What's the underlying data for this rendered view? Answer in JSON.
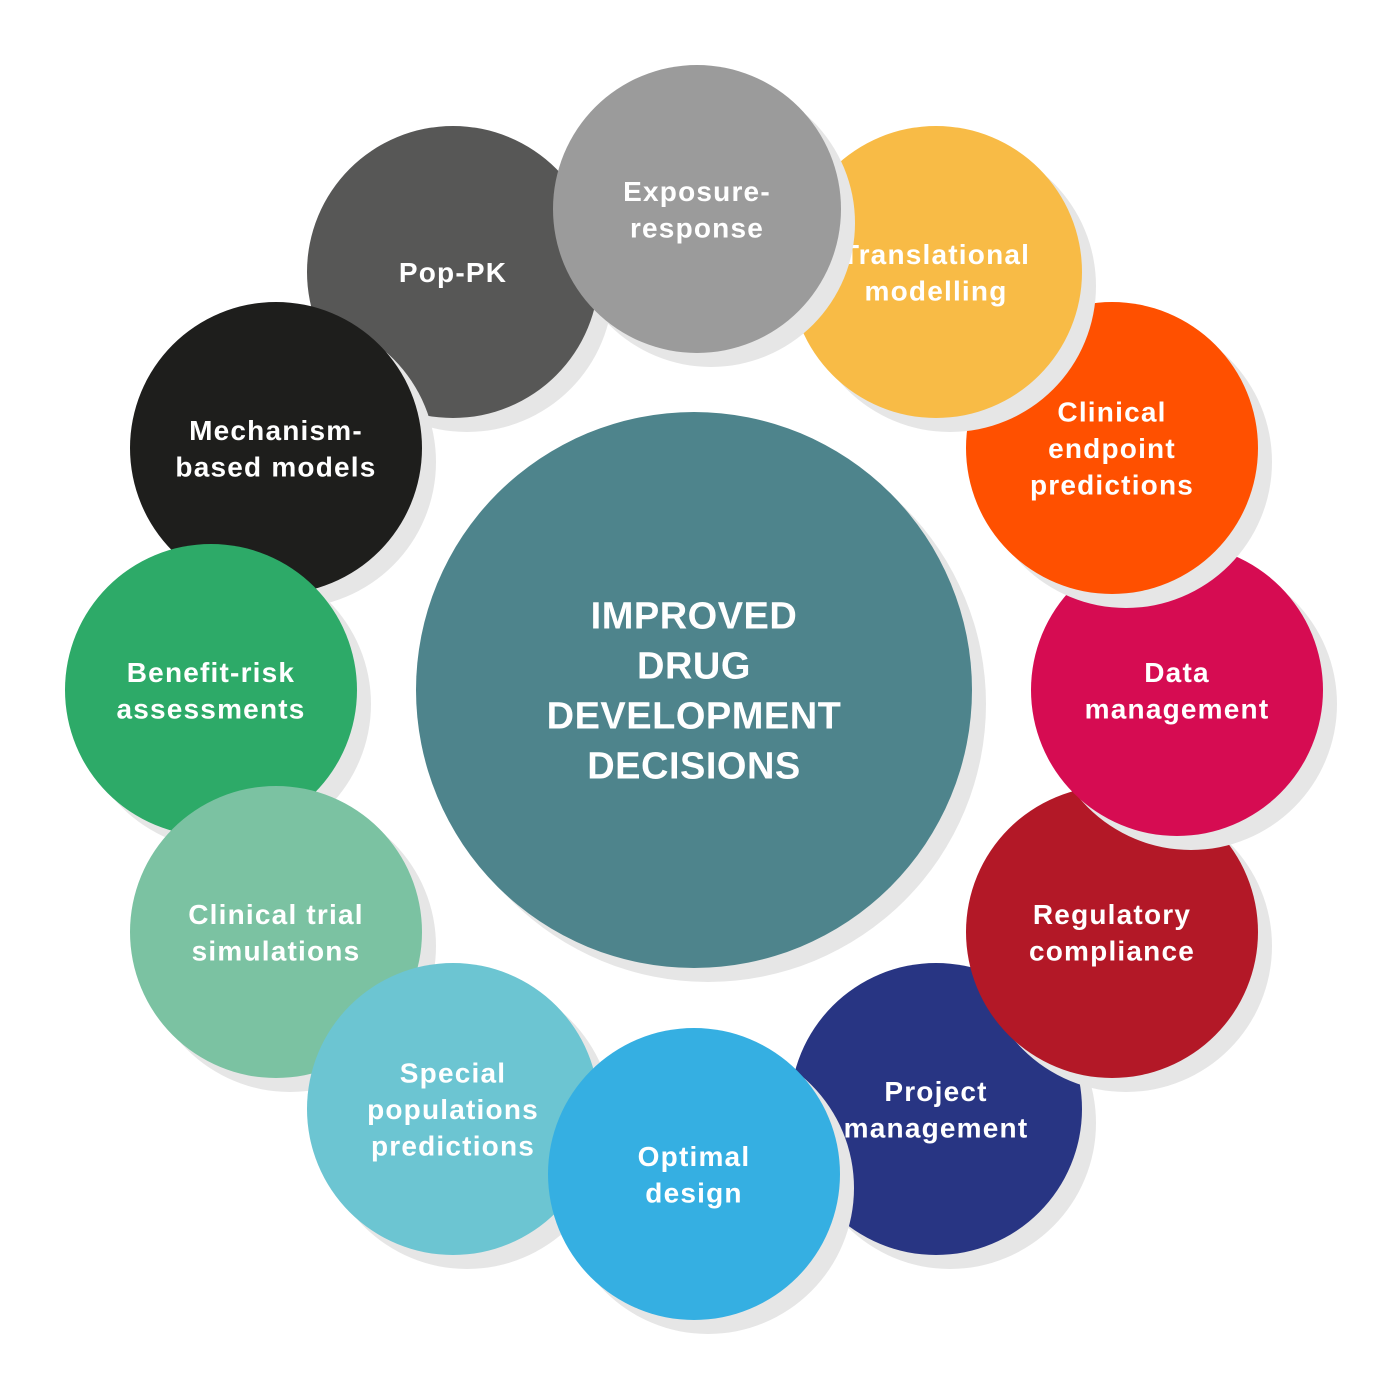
{
  "center": {
    "lines": [
      "IMPROVED",
      "DRUG",
      "DEVELOPMENT",
      "DECISIONS"
    ],
    "color": "#4e848c"
  },
  "shadow_color": "#e6e6e6",
  "nodes": [
    {
      "id": "pop-pk",
      "lines": [
        "Pop-PK"
      ],
      "color": "#575756"
    },
    {
      "id": "mechanism-based-models",
      "lines": [
        "Mechanism-",
        "based models"
      ],
      "color": "#1e1e1c"
    },
    {
      "id": "benefit-risk-assessments",
      "lines": [
        "Benefit-risk",
        "assessments"
      ],
      "color": "#2daa68"
    },
    {
      "id": "clinical-trial-simulations",
      "lines": [
        "Clinical trial",
        "simulations"
      ],
      "color": "#7bc2a2"
    },
    {
      "id": "special-populations-predictions",
      "lines": [
        "Special",
        "populations",
        "predictions"
      ],
      "color": "#6cc5d2"
    },
    {
      "id": "project-management",
      "lines": [
        "Project",
        "management"
      ],
      "color": "#283583"
    },
    {
      "id": "regulatory-compliance",
      "lines": [
        "Regulatory",
        "compliance"
      ],
      "color": "#b31827"
    },
    {
      "id": "data-management",
      "lines": [
        "Data",
        "management"
      ],
      "color": "#d60c52"
    },
    {
      "id": "clinical-endpoint-predictions",
      "lines": [
        "Clinical",
        "endpoint",
        "predictions"
      ],
      "color": "#ff5000"
    },
    {
      "id": "translational-modelling",
      "lines": [
        "Translational",
        "modelling"
      ],
      "color": "#f8bb46"
    },
    {
      "id": "optimal-design",
      "lines": [
        "Optimal",
        "design"
      ],
      "color": "#35afe2"
    },
    {
      "id": "exposure-response",
      "lines": [
        "Exposure-",
        "response"
      ],
      "color": "#9b9b9b"
    }
  ]
}
